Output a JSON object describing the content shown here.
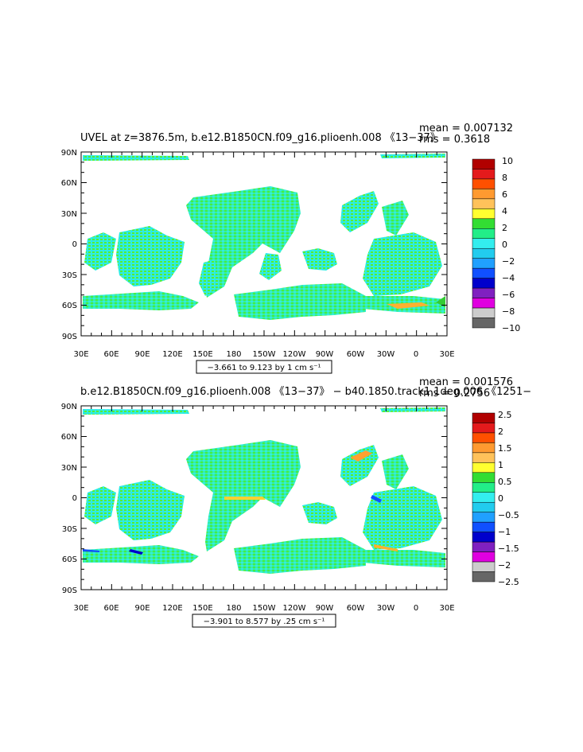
{
  "panels": [
    {
      "title": "UVEL at z=3876.5m, b.e12.B1850CN.f09_g16.plioenh.008 《13−37》",
      "mean_label": "mean = 0.007132",
      "rms_label": "rms = 0.3618",
      "range_label": "−3.661 to 9.123 by 1 cm s⁻¹",
      "colorbar_labels": [
        "10",
        "8",
        "6",
        "4",
        "2",
        "0",
        "−2",
        "−4",
        "−6",
        "−8",
        "−10"
      ]
    },
    {
      "title": "b.e12.B1850CN.f09_g16.plioenh.008 《13−37》 − b40.1850.track1.1deg.006 《1251−",
      "mean_label": "mean = 0.001576",
      "rms_label": "rms = 0.2756",
      "range_label": "−3.901 to 8.577 by .25 cm s⁻¹",
      "colorbar_labels": [
        "2.5",
        "2",
        "1.5",
        "1",
        "0.5",
        "0",
        "−0.5",
        "−1",
        "−1.5",
        "−2",
        "−2.5"
      ]
    }
  ],
  "axes": {
    "lat_labels": [
      "90N",
      "60N",
      "30N",
      "0",
      "30S",
      "60S",
      "90S"
    ],
    "lon_labels": [
      "30E",
      "60E",
      "90E",
      "120E",
      "150E",
      "180",
      "150W",
      "120W",
      "90W",
      "60W",
      "30W",
      "0",
      "30E"
    ]
  },
  "colors": {
    "scale": [
      "#b10000",
      "#e41a1c",
      "#ff5000",
      "#ff9a30",
      "#ffc25a",
      "#ffff30",
      "#33dd33",
      "#22ee88",
      "#33eeee",
      "#22ccee",
      "#20a0ff",
      "#1050ff",
      "#0000cc",
      "#8020c0",
      "#e000e0",
      "#cccccc",
      "#666666"
    ],
    "land_map": "#ffffff"
  }
}
